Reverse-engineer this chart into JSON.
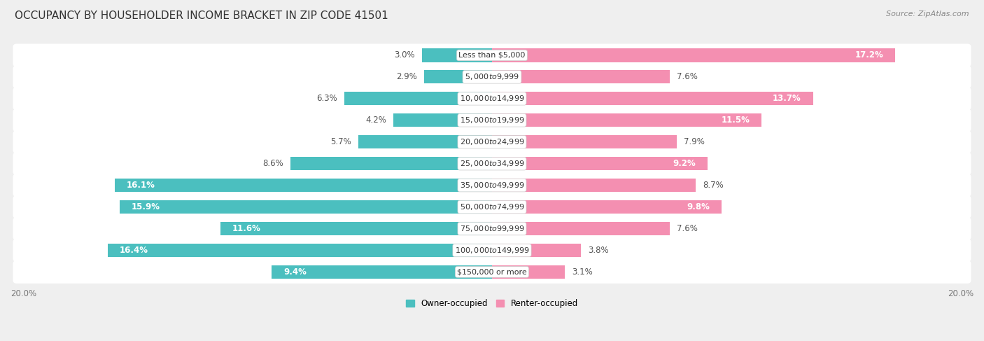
{
  "title": "OCCUPANCY BY HOUSEHOLDER INCOME BRACKET IN ZIP CODE 41501",
  "source": "Source: ZipAtlas.com",
  "categories": [
    "Less than $5,000",
    "$5,000 to $9,999",
    "$10,000 to $14,999",
    "$15,000 to $19,999",
    "$20,000 to $24,999",
    "$25,000 to $34,999",
    "$35,000 to $49,999",
    "$50,000 to $74,999",
    "$75,000 to $99,999",
    "$100,000 to $149,999",
    "$150,000 or more"
  ],
  "owner_values": [
    3.0,
    2.9,
    6.3,
    4.2,
    5.7,
    8.6,
    16.1,
    15.9,
    11.6,
    16.4,
    9.4
  ],
  "renter_values": [
    17.2,
    7.6,
    13.7,
    11.5,
    7.9,
    9.2,
    8.7,
    9.8,
    7.6,
    3.8,
    3.1
  ],
  "owner_color": "#4BBFBF",
  "renter_color": "#F48FB1",
  "owner_label": "Owner-occupied",
  "renter_label": "Renter-occupied",
  "axis_max": 20.0,
  "title_fontsize": 11,
  "cat_fontsize": 8.0,
  "val_fontsize": 8.5,
  "tick_fontsize": 8.5,
  "source_fontsize": 8,
  "bg_color": "#efefef",
  "row_bg_color": "#e8e8e8",
  "bar_bg_color": "#ffffff",
  "bar_height": 0.62,
  "label_threshold_owner": 9.0,
  "label_threshold_renter": 9.0
}
